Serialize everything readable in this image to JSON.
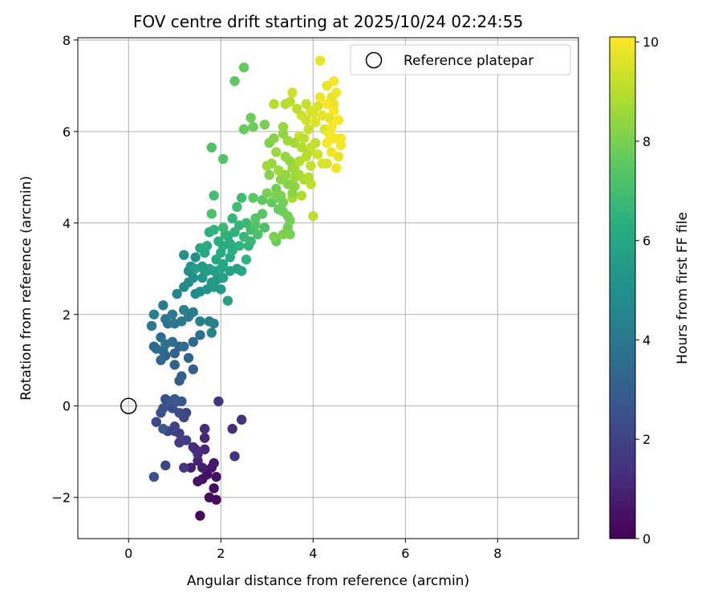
{
  "chart_data": {
    "type": "scatter",
    "title": "FOV centre drift starting at 2025/10/24 02:24:55",
    "xlabel": "Angular distance from reference (arcmin)",
    "ylabel": "Rotation from reference (arcmin)",
    "xlim": [
      -1.1,
      9.75
    ],
    "ylim": [
      -2.9,
      8.05
    ],
    "xticks": [
      0,
      2,
      4,
      6,
      8
    ],
    "yticks": [
      -2,
      0,
      2,
      4,
      6,
      8
    ],
    "xtick_labels": [
      "0",
      "2",
      "4",
      "6",
      "8"
    ],
    "ytick_labels": [
      "−2",
      "0",
      "2",
      "4",
      "6",
      "8"
    ],
    "grid": true,
    "legend": {
      "placement": "top-right",
      "entries": [
        "Reference platepar"
      ]
    },
    "reference_point": {
      "x": 0,
      "y": 0,
      "label": "Reference platepar"
    },
    "colorbar": {
      "label": "Hours from first FF file",
      "min": 0,
      "max": 10.1,
      "ticks": [
        0,
        2,
        4,
        6,
        8,
        10
      ],
      "tick_labels": [
        "0",
        "2",
        "4",
        "6",
        "8",
        "10"
      ],
      "colormap": "viridis"
    },
    "points": [
      [
        1.55,
        -2.4,
        0.2
      ],
      [
        1.75,
        -2.0,
        0.3
      ],
      [
        1.9,
        -2.05,
        0.3
      ],
      [
        1.85,
        -1.8,
        0.4
      ],
      [
        1.6,
        -1.6,
        0.4
      ],
      [
        1.7,
        -1.5,
        0.5
      ],
      [
        1.9,
        -1.55,
        0.5
      ],
      [
        1.5,
        -1.65,
        0.6
      ],
      [
        1.8,
        -1.35,
        0.6
      ],
      [
        1.85,
        -1.25,
        0.7
      ],
      [
        1.6,
        -1.35,
        0.8
      ],
      [
        1.35,
        -1.35,
        0.9
      ],
      [
        1.5,
        -1.2,
        1.0
      ],
      [
        1.65,
        -0.95,
        1.1
      ],
      [
        1.65,
        -0.7,
        1.1
      ],
      [
        1.45,
        -0.95,
        1.2
      ],
      [
        1.65,
        -0.5,
        1.2
      ],
      [
        1.5,
        -1.05,
        1.3
      ],
      [
        1.4,
        -0.9,
        1.3
      ],
      [
        2.25,
        -0.5,
        1.3
      ],
      [
        2.45,
        -0.3,
        1.4
      ],
      [
        2.3,
        -1.1,
        1.4
      ],
      [
        1.95,
        0.1,
        1.5
      ],
      [
        1.2,
        -1.35,
        1.6
      ],
      [
        1.1,
        -0.8,
        1.7
      ],
      [
        1.25,
        -0.75,
        1.8
      ],
      [
        1.1,
        -0.6,
        1.8
      ],
      [
        1.25,
        -0.15,
        1.9
      ],
      [
        1.0,
        -0.55,
        1.9
      ],
      [
        0.85,
        -0.55,
        2.0
      ],
      [
        1.0,
        -0.45,
        2.0
      ],
      [
        0.8,
        -1.3,
        2.1
      ],
      [
        0.6,
        -0.35,
        2.2
      ],
      [
        1.2,
        -0.25,
        2.2
      ],
      [
        1.1,
        -0.15,
        2.3
      ],
      [
        1.05,
        0.1,
        2.3
      ],
      [
        0.95,
        -0.05,
        2.4
      ],
      [
        0.7,
        -0.15,
        2.4
      ],
      [
        0.75,
        -0.05,
        2.5
      ],
      [
        0.8,
        0.15,
        2.5
      ],
      [
        0.9,
        0.1,
        2.6
      ],
      [
        0.55,
        -1.55,
        2.6
      ],
      [
        1.15,
        0.1,
        2.7
      ],
      [
        0.75,
        -0.5,
        2.8
      ],
      [
        1.0,
        0.15,
        2.8
      ],
      [
        1.1,
        0.55,
        2.9
      ],
      [
        1.15,
        0.65,
        3.0
      ],
      [
        1.4,
        0.8,
        3.0
      ],
      [
        1.0,
        0.9,
        3.1
      ],
      [
        0.8,
        1.1,
        3.1
      ],
      [
        1.0,
        1.15,
        3.2
      ],
      [
        1.1,
        1.3,
        3.2
      ],
      [
        0.7,
        1.0,
        3.3
      ],
      [
        1.3,
        1.05,
        3.3
      ],
      [
        0.55,
        1.3,
        3.4
      ],
      [
        0.75,
        1.2,
        3.4
      ],
      [
        0.6,
        1.25,
        3.5
      ],
      [
        1.4,
        1.4,
        3.5
      ],
      [
        1.2,
        1.3,
        3.6
      ],
      [
        0.95,
        1.4,
        3.6
      ],
      [
        0.7,
        1.5,
        3.7
      ],
      [
        1.55,
        1.55,
        3.7
      ],
      [
        0.8,
        1.35,
        3.8
      ],
      [
        0.85,
        1.8,
        3.8
      ],
      [
        0.8,
        1.9,
        3.9
      ],
      [
        1.0,
        1.8,
        3.9
      ],
      [
        0.5,
        1.75,
        4.0
      ],
      [
        1.15,
        1.85,
        4.0
      ],
      [
        1.3,
        1.95,
        4.1
      ],
      [
        0.95,
        2.0,
        4.1
      ],
      [
        1.4,
        2.05,
        4.2
      ],
      [
        0.75,
        2.2,
        4.2
      ],
      [
        1.2,
        2.1,
        4.3
      ],
      [
        0.55,
        2.0,
        4.3
      ],
      [
        1.55,
        1.85,
        4.4
      ],
      [
        1.75,
        1.85,
        4.4
      ],
      [
        1.85,
        1.8,
        4.5
      ],
      [
        1.8,
        1.6,
        4.6
      ],
      [
        1.05,
        2.45,
        4.6
      ],
      [
        1.2,
        2.6,
        4.7
      ],
      [
        1.45,
        2.45,
        4.8
      ],
      [
        1.3,
        2.7,
        4.9
      ],
      [
        1.55,
        2.5,
        4.9
      ],
      [
        1.4,
        2.8,
        5.0
      ],
      [
        1.3,
        2.95,
        5.0
      ],
      [
        1.2,
        3.3,
        5.1
      ],
      [
        1.45,
        3.25,
        5.1
      ],
      [
        1.6,
        2.8,
        5.2
      ],
      [
        1.35,
        3.05,
        5.2
      ],
      [
        1.8,
        2.7,
        5.3
      ],
      [
        1.7,
        2.55,
        5.3
      ],
      [
        1.85,
        2.6,
        5.4
      ],
      [
        2.0,
        2.55,
        5.4
      ],
      [
        1.6,
        3.05,
        5.5
      ],
      [
        1.65,
        2.95,
        5.5
      ],
      [
        1.85,
        2.95,
        5.6
      ],
      [
        1.95,
        2.95,
        5.6
      ],
      [
        2.05,
        2.8,
        5.7
      ],
      [
        2.15,
        2.3,
        5.7
      ],
      [
        2.2,
        2.95,
        5.8
      ],
      [
        2.35,
        3.0,
        5.8
      ],
      [
        2.45,
        2.95,
        5.9
      ],
      [
        1.75,
        3.0,
        5.9
      ],
      [
        2.05,
        3.1,
        6.0
      ],
      [
        1.9,
        3.2,
        6.0
      ],
      [
        2.2,
        3.25,
        6.1
      ],
      [
        1.55,
        3.45,
        6.1
      ],
      [
        1.7,
        3.5,
        6.2
      ],
      [
        2.0,
        3.35,
        6.2
      ],
      [
        2.2,
        3.55,
        6.3
      ],
      [
        1.95,
        3.6,
        6.3
      ],
      [
        1.75,
        3.8,
        6.4
      ],
      [
        2.1,
        3.75,
        6.4
      ],
      [
        2.3,
        3.8,
        6.5
      ],
      [
        1.85,
        3.85,
        6.5
      ],
      [
        2.4,
        3.95,
        6.6
      ],
      [
        2.25,
        4.1,
        6.6
      ],
      [
        2.5,
        3.7,
        6.7
      ],
      [
        2.65,
        3.6,
        6.7
      ],
      [
        2.05,
        3.9,
        6.8
      ],
      [
        2.55,
        4.0,
        6.8
      ],
      [
        2.35,
        4.35,
        6.9
      ],
      [
        2.45,
        4.55,
        6.9
      ],
      [
        1.85,
        4.6,
        7.0
      ],
      [
        2.65,
        3.85,
        7.0
      ],
      [
        2.8,
        3.75,
        7.1
      ],
      [
        2.95,
        3.9,
        7.2
      ],
      [
        1.8,
        4.2,
        7.2
      ],
      [
        2.75,
        3.95,
        7.3
      ],
      [
        2.75,
        4.1,
        7.4
      ],
      [
        2.9,
        4.2,
        7.4
      ],
      [
        2.7,
        4.55,
        7.5
      ],
      [
        2.9,
        4.5,
        7.5
      ],
      [
        3.1,
        4.45,
        7.6
      ],
      [
        3.25,
        4.3,
        7.7
      ],
      [
        3.2,
        3.6,
        7.7
      ],
      [
        3.45,
        3.9,
        7.8
      ],
      [
        3.35,
        4.25,
        7.8
      ],
      [
        3.25,
        4.55,
        7.9
      ],
      [
        3.2,
        4.75,
        7.9
      ],
      [
        3.5,
        4.05,
        8.0
      ],
      [
        3.5,
        3.75,
        8.0
      ],
      [
        3.35,
        3.75,
        8.1
      ],
      [
        3.15,
        3.7,
        8.1
      ],
      [
        3.3,
        4.6,
        8.2
      ],
      [
        3.45,
        4.85,
        8.2
      ],
      [
        3.3,
        4.95,
        8.3
      ],
      [
        3.6,
        4.8,
        8.3
      ],
      [
        3.4,
        5.05,
        8.4
      ],
      [
        3.5,
        5.35,
        8.4
      ],
      [
        3.2,
        5.55,
        8.5
      ],
      [
        3.1,
        5.3,
        8.5
      ],
      [
        3.0,
        5.25,
        8.6
      ],
      [
        3.25,
        5.15,
        8.6
      ],
      [
        3.6,
        5.2,
        8.7
      ],
      [
        3.7,
        5.05,
        8.7
      ],
      [
        3.8,
        4.95,
        8.8
      ],
      [
        3.55,
        4.55,
        8.8
      ],
      [
        3.75,
        4.6,
        8.9
      ],
      [
        3.7,
        5.35,
        8.9
      ],
      [
        3.85,
        5.45,
        9.0
      ],
      [
        3.9,
        5.55,
        9.0
      ],
      [
        3.95,
        4.85,
        9.1
      ],
      [
        4.0,
        4.15,
        9.1
      ],
      [
        3.95,
        5.25,
        9.2
      ],
      [
        4.05,
        5.75,
        9.2
      ],
      [
        3.7,
        5.9,
        9.3
      ],
      [
        3.9,
        6.05,
        9.3
      ],
      [
        3.85,
        6.25,
        9.4
      ],
      [
        3.75,
        6.35,
        9.4
      ],
      [
        3.95,
        6.45,
        9.5
      ],
      [
        4.1,
        6.55,
        9.5
      ],
      [
        4.05,
        6.2,
        9.6
      ],
      [
        4.25,
        6.05,
        9.6
      ],
      [
        4.2,
        6.35,
        9.7
      ],
      [
        4.35,
        6.3,
        9.7
      ],
      [
        4.4,
        6.75,
        9.8
      ],
      [
        4.45,
        6.6,
        9.8
      ],
      [
        4.5,
        6.85,
        9.9
      ],
      [
        4.35,
        5.95,
        9.9
      ],
      [
        4.45,
        5.85,
        10.0
      ],
      [
        4.3,
        5.75,
        10.0
      ],
      [
        4.6,
        5.7,
        10.0
      ],
      [
        4.4,
        5.55,
        9.9
      ],
      [
        4.5,
        5.2,
        9.9
      ],
      [
        4.45,
        7.1,
        10.0
      ],
      [
        4.15,
        6.75,
        9.9
      ],
      [
        4.3,
        7.0,
        9.8
      ],
      [
        4.15,
        7.55,
        9.7
      ],
      [
        3.55,
        6.85,
        9.4
      ],
      [
        3.15,
        6.6,
        8.9
      ],
      [
        3.4,
        6.6,
        8.9
      ],
      [
        3.5,
        6.65,
        9.0
      ],
      [
        3.85,
        6.6,
        9.2
      ],
      [
        3.65,
        6.5,
        9.1
      ],
      [
        2.7,
        6.1,
        7.8
      ],
      [
        2.95,
        6.15,
        8.0
      ],
      [
        2.5,
        6.05,
        7.7
      ],
      [
        2.65,
        6.3,
        7.8
      ],
      [
        2.3,
        7.1,
        7.6
      ],
      [
        2.5,
        7.4,
        7.7
      ],
      [
        1.8,
        5.65,
        7.2
      ],
      [
        2.05,
        5.4,
        7.3
      ],
      [
        3.05,
        5.75,
        8.1
      ],
      [
        3.15,
        5.85,
        8.2
      ],
      [
        3.35,
        5.95,
        8.4
      ],
      [
        3.35,
        6.1,
        8.5
      ],
      [
        3.45,
        5.8,
        8.6
      ],
      [
        3.6,
        5.75,
        8.7
      ],
      [
        3.75,
        5.65,
        8.9
      ],
      [
        3.8,
        5.85,
        9.1
      ],
      [
        3.95,
        5.65,
        9.2
      ],
      [
        4.1,
        5.5,
        9.4
      ],
      [
        4.2,
        5.3,
        9.5
      ],
      [
        4.3,
        5.3,
        9.6
      ],
      [
        4.55,
        5.45,
        9.8
      ],
      [
        4.6,
        5.85,
        10.0
      ],
      [
        4.4,
        6.1,
        10.0
      ],
      [
        4.55,
        6.25,
        10.0
      ],
      [
        4.45,
        6.45,
        10.0
      ],
      [
        4.3,
        6.6,
        10.0
      ],
      [
        4.0,
        6.4,
        9.5
      ],
      [
        3.9,
        5.0,
        9.0
      ],
      [
        3.6,
        5.0,
        8.6
      ],
      [
        3.55,
        5.2,
        8.6
      ],
      [
        3.4,
        5.45,
        8.4
      ],
      [
        3.05,
        5.05,
        8.2
      ],
      [
        3.35,
        4.45,
        7.9
      ],
      [
        3.55,
        4.65,
        8.3
      ],
      [
        3.0,
        4.65,
        8.0
      ],
      [
        3.2,
        4.6,
        8.0
      ],
      [
        3.45,
        4.15,
        7.9
      ],
      [
        2.55,
        3.2,
        6.5
      ],
      [
        2.05,
        3.5,
        6.2
      ],
      [
        2.25,
        3.4,
        6.3
      ],
      [
        2.15,
        3.7,
        6.4
      ],
      [
        2.6,
        3.5,
        6.6
      ],
      [
        2.4,
        3.5,
        6.5
      ],
      [
        2.0,
        3.0,
        5.9
      ],
      [
        1.65,
        3.35,
        6.1
      ],
      [
        1.45,
        3.0,
        5.6
      ],
      [
        1.7,
        2.95,
        5.6
      ],
      [
        1.9,
        2.75,
        5.5
      ]
    ]
  }
}
